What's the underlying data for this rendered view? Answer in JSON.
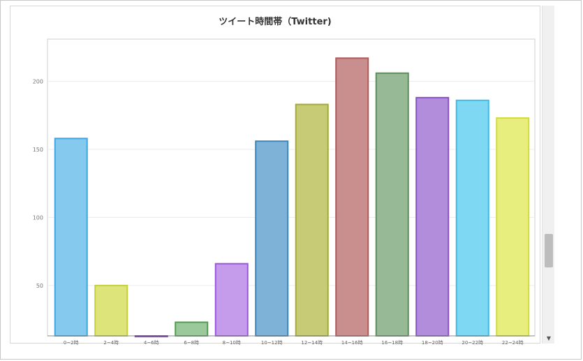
{
  "chart_data": {
    "type": "bar",
    "title": "ツイート時間帯（Twitter)",
    "categories": [
      "0~2時",
      "2~4時",
      "4~6時",
      "6~8時",
      "8~10時",
      "10~12時",
      "12~14時",
      "14~16時",
      "16~18時",
      "18~20時",
      "20~22時",
      "22~24時"
    ],
    "values": [
      158,
      50,
      13,
      23,
      66,
      156,
      183,
      217,
      206,
      188,
      186,
      173
    ],
    "colors": [
      "#86c9ee",
      "#dde57a",
      "#9c7bbf",
      "#9bc99b",
      "#c49ceb",
      "#7fb2d7",
      "#c7cb76",
      "#c98e8e",
      "#97b996",
      "#b28ddc",
      "#7ed7f3",
      "#e8ee7e"
    ],
    "borders": [
      "#3fa7e0",
      "#c5cf3c",
      "#6b4a91",
      "#4f9e4f",
      "#9a56d9",
      "#3b85bd",
      "#a5ab32",
      "#b05858",
      "#5e8d5d",
      "#8750c5",
      "#3bbde8",
      "#d3dc35"
    ],
    "ylim": [
      13,
      231
    ],
    "yticks": [
      50,
      100,
      150,
      200
    ],
    "xlabel": "",
    "ylabel": "",
    "grid": true,
    "legend": "none"
  }
}
